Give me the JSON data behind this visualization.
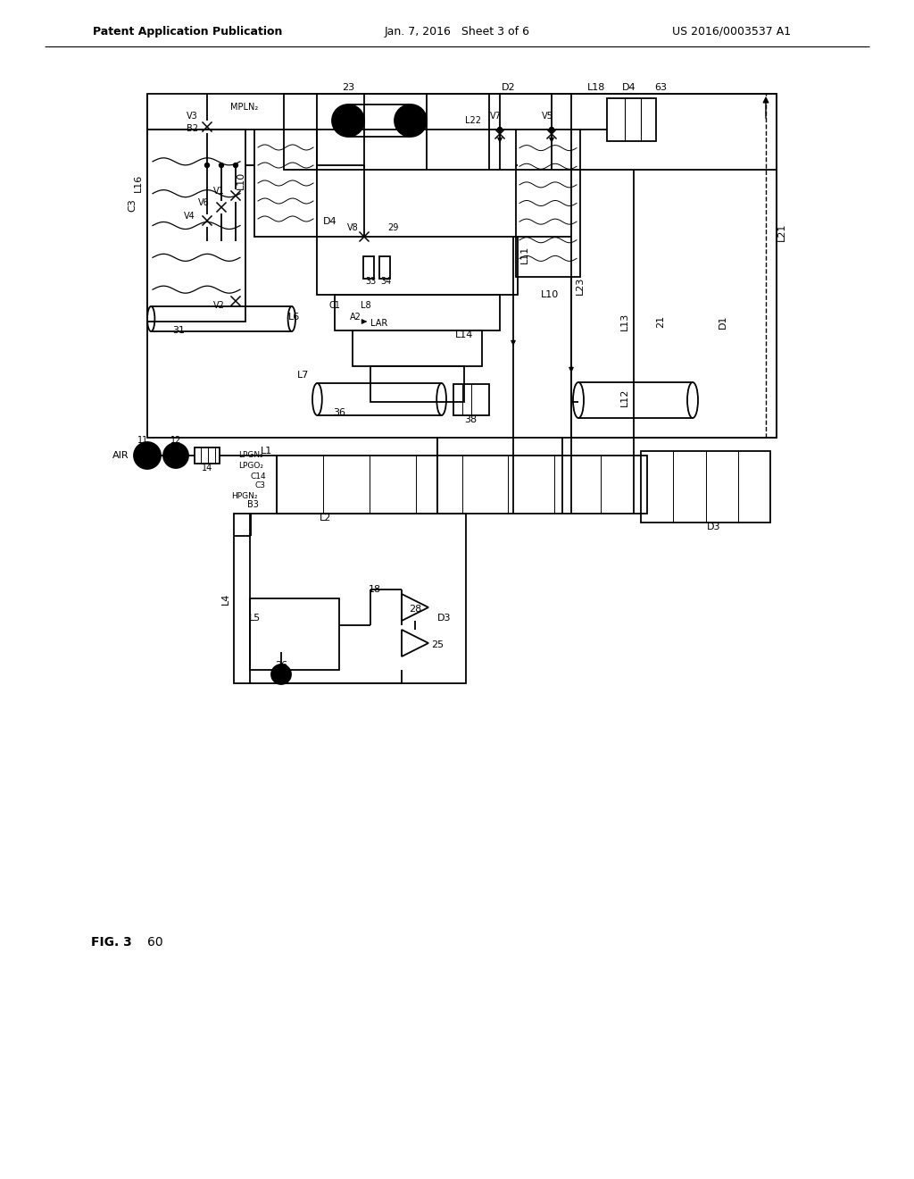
{
  "title_left": "Patent Application Publication",
  "title_center": "Jan. 7, 2016   Sheet 3 of 6",
  "title_right": "US 2016/0003537 A1",
  "background": "#ffffff",
  "lw": 1.3
}
